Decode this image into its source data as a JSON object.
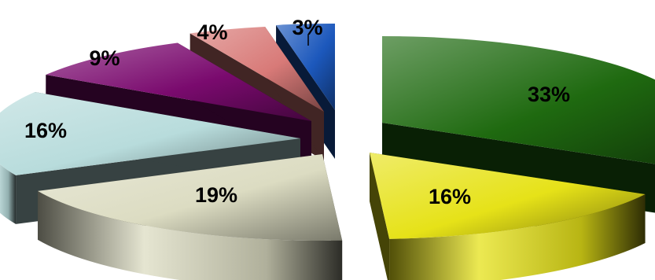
{
  "chart_data": {
    "type": "pie",
    "style": "3d-exploded",
    "legend": "none",
    "slices": [
      {
        "label": "33%",
        "value": 33,
        "color": "#1f6a10"
      },
      {
        "label": "16%",
        "value": 16,
        "color": "#e6e218"
      },
      {
        "label": "19%",
        "value": 19,
        "color": "#dcdcc2"
      },
      {
        "label": "16%",
        "value": 16,
        "color": "#b8dcdc"
      },
      {
        "label": "9%",
        "value": 9,
        "color": "#7a0a6e"
      },
      {
        "label": "4%",
        "value": 4,
        "color": "#d87a78"
      },
      {
        "label": "3%",
        "value": 3,
        "color": "#1c58bc"
      }
    ]
  }
}
